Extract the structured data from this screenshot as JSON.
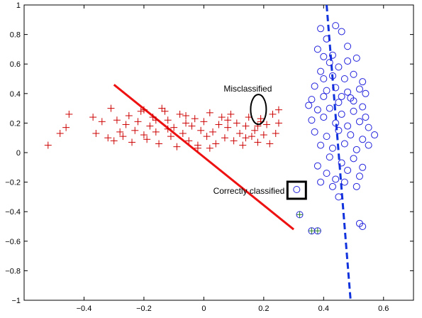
{
  "chart_data": {
    "type": "scatter",
    "title": "",
    "xlabel": "",
    "ylabel": "",
    "xlim": [
      -0.6,
      0.7
    ],
    "ylim": [
      -1,
      1
    ],
    "grid": false,
    "x_ticks": [
      -0.4,
      -0.2,
      0,
      0.2,
      0.4,
      0.6
    ],
    "x_tick_labels": [
      "−0.4",
      "−0.2",
      "0",
      "0.2",
      "0.4",
      "0.6"
    ],
    "y_ticks": [
      -1,
      -0.8,
      -0.6,
      -0.4,
      -0.2,
      0,
      0.2,
      0.4,
      0.6,
      0.8,
      1
    ],
    "y_tick_labels": [
      "−1",
      "−0.8",
      "−0.6",
      "−0.4",
      "−0.2",
      "0",
      "0.2",
      "0.4",
      "0.6",
      "0.8",
      "1"
    ],
    "series": [
      {
        "marker": "plus",
        "color": "#cc0000",
        "points": [
          [
            -0.52,
            0.05
          ],
          [
            -0.48,
            0.13
          ],
          [
            -0.46,
            0.17
          ],
          [
            -0.45,
            0.26
          ],
          [
            -0.37,
            0.24
          ],
          [
            -0.36,
            0.13
          ],
          [
            -0.34,
            0.21
          ],
          [
            -0.32,
            0.1
          ],
          [
            -0.31,
            0.3
          ],
          [
            -0.3,
            0.08
          ],
          [
            -0.29,
            0.22
          ],
          [
            -0.28,
            0.14
          ],
          [
            -0.27,
            0.11
          ],
          [
            -0.26,
            0.19
          ],
          [
            -0.25,
            0.25
          ],
          [
            -0.24,
            0.07
          ],
          [
            -0.23,
            0.15
          ],
          [
            -0.22,
            0.21
          ],
          [
            -0.21,
            0.28
          ],
          [
            -0.2,
            0.12
          ],
          [
            -0.19,
            0.09
          ],
          [
            -0.18,
            0.18
          ],
          [
            -0.17,
            0.24
          ],
          [
            -0.16,
            0.14
          ],
          [
            -0.15,
            0.06
          ],
          [
            -0.14,
            0.3
          ],
          [
            -0.13,
            0.28
          ],
          [
            -0.12,
            0.22
          ],
          [
            -0.11,
            0.11
          ],
          [
            -0.1,
            0.17
          ],
          [
            -0.09,
            0.04
          ],
          [
            -0.08,
            0.26
          ],
          [
            -0.07,
            0.13
          ],
          [
            -0.06,
            0.2
          ],
          [
            -0.05,
            0.08
          ],
          [
            -0.04,
            0.18
          ],
          [
            -0.03,
            0.23
          ],
          [
            -0.02,
            0.05
          ],
          [
            -0.01,
            0.15
          ],
          [
            0.0,
            0.21
          ],
          [
            0.01,
            0.11
          ],
          [
            0.02,
            0.27
          ],
          [
            0.03,
            0.14
          ],
          [
            0.04,
            0.06
          ],
          [
            0.05,
            0.19
          ],
          [
            0.06,
            0.24
          ],
          [
            0.07,
            0.1
          ],
          [
            0.08,
            0.17
          ],
          [
            0.09,
            0.26
          ],
          [
            0.1,
            0.08
          ],
          [
            0.11,
            0.2
          ],
          [
            0.12,
            0.13
          ],
          [
            0.13,
            0.05
          ],
          [
            0.14,
            0.18
          ],
          [
            0.15,
            0.24
          ],
          [
            0.16,
            0.11
          ],
          [
            0.17,
            0.15
          ],
          [
            0.18,
            0.07
          ],
          [
            0.19,
            0.21
          ],
          [
            0.2,
            0.12
          ],
          [
            0.21,
            0.19
          ],
          [
            0.22,
            0.06
          ],
          [
            0.23,
            0.26
          ],
          [
            0.24,
            0.13
          ],
          [
            0.25,
            0.2
          ],
          [
            0.19,
            0.23
          ],
          [
            0.18,
            0.18
          ],
          [
            0.25,
            0.29
          ],
          [
            -0.2,
            0.29
          ],
          [
            -0.06,
            0.25
          ],
          [
            -0.02,
            0.03
          ],
          [
            0.02,
            0.03
          ],
          [
            0.08,
            0.22
          ],
          [
            0.14,
            0.1
          ],
          [
            -0.12,
            0.16
          ],
          [
            -0.16,
            0.22
          ]
        ]
      },
      {
        "marker": "circle",
        "color": "#2222dd",
        "points": [
          [
            0.39,
            0.84
          ],
          [
            0.41,
            0.77
          ],
          [
            0.44,
            0.86
          ],
          [
            0.46,
            0.82
          ],
          [
            0.38,
            0.7
          ],
          [
            0.4,
            0.65
          ],
          [
            0.42,
            0.61
          ],
          [
            0.45,
            0.58
          ],
          [
            0.48,
            0.62
          ],
          [
            0.51,
            0.64
          ],
          [
            0.39,
            0.55
          ],
          [
            0.43,
            0.52
          ],
          [
            0.47,
            0.5
          ],
          [
            0.5,
            0.53
          ],
          [
            0.53,
            0.48
          ],
          [
            0.37,
            0.45
          ],
          [
            0.41,
            0.42
          ],
          [
            0.44,
            0.44
          ],
          [
            0.48,
            0.41
          ],
          [
            0.52,
            0.43
          ],
          [
            0.36,
            0.36
          ],
          [
            0.4,
            0.38
          ],
          [
            0.45,
            0.34
          ],
          [
            0.49,
            0.37
          ],
          [
            0.53,
            0.31
          ],
          [
            0.38,
            0.29
          ],
          [
            0.42,
            0.3
          ],
          [
            0.46,
            0.26
          ],
          [
            0.5,
            0.28
          ],
          [
            0.54,
            0.24
          ],
          [
            0.36,
            0.22
          ],
          [
            0.4,
            0.24
          ],
          [
            0.44,
            0.2
          ],
          [
            0.48,
            0.18
          ],
          [
            0.52,
            0.21
          ],
          [
            0.55,
            0.17
          ],
          [
            0.37,
            0.14
          ],
          [
            0.41,
            0.11
          ],
          [
            0.45,
            0.15
          ],
          [
            0.49,
            0.12
          ],
          [
            0.53,
            0.09
          ],
          [
            0.57,
            0.12
          ],
          [
            0.39,
            0.05
          ],
          [
            0.43,
            0.03
          ],
          [
            0.47,
            0.06
          ],
          [
            0.51,
            0.02
          ],
          [
            0.55,
            0.05
          ],
          [
            0.42,
            -0.03
          ],
          [
            0.46,
            -0.07
          ],
          [
            0.5,
            -0.04
          ],
          [
            0.53,
            -0.1
          ],
          [
            0.38,
            -0.09
          ],
          [
            0.41,
            -0.14
          ],
          [
            0.44,
            -0.18
          ],
          [
            0.48,
            -0.12
          ],
          [
            0.52,
            -0.16
          ],
          [
            0.39,
            -0.2
          ],
          [
            0.43,
            -0.23
          ],
          [
            0.47,
            -0.2
          ],
          [
            0.51,
            -0.23
          ],
          [
            0.45,
            -0.3
          ],
          [
            0.52,
            -0.48
          ],
          [
            0.53,
            -0.5
          ],
          [
            0.46,
            0.38
          ],
          [
            0.43,
            0.66
          ],
          [
            0.5,
            0.35
          ],
          [
            0.4,
            0.5
          ],
          [
            0.48,
            0.72
          ],
          [
            0.54,
            0.4
          ],
          [
            0.35,
            0.32
          ],
          [
            0.31,
            -0.25
          ]
        ]
      },
      {
        "marker": "circle-plus",
        "color": "#2a7d2a",
        "points": [
          [
            0.32,
            -0.42
          ],
          [
            0.36,
            -0.53
          ],
          [
            0.38,
            -0.53
          ]
        ]
      }
    ],
    "lines": [
      {
        "name": "",
        "style": "solid",
        "color": "#ee1111",
        "points": [
          [
            -0.3,
            0.46
          ],
          [
            0.3,
            -0.52
          ]
        ]
      },
      {
        "name": "",
        "style": "dashed",
        "color": "#1133dd",
        "points": [
          [
            0.41,
            1.0
          ],
          [
            0.49,
            -1.0
          ]
        ]
      }
    ],
    "annotations": [
      {
        "text": "Misclassified",
        "shape": "ellipse",
        "target": [
          0.18,
          0.23
        ]
      },
      {
        "text": "Correctly classified",
        "shape": "square",
        "target": [
          0.31,
          -0.25
        ]
      }
    ]
  }
}
